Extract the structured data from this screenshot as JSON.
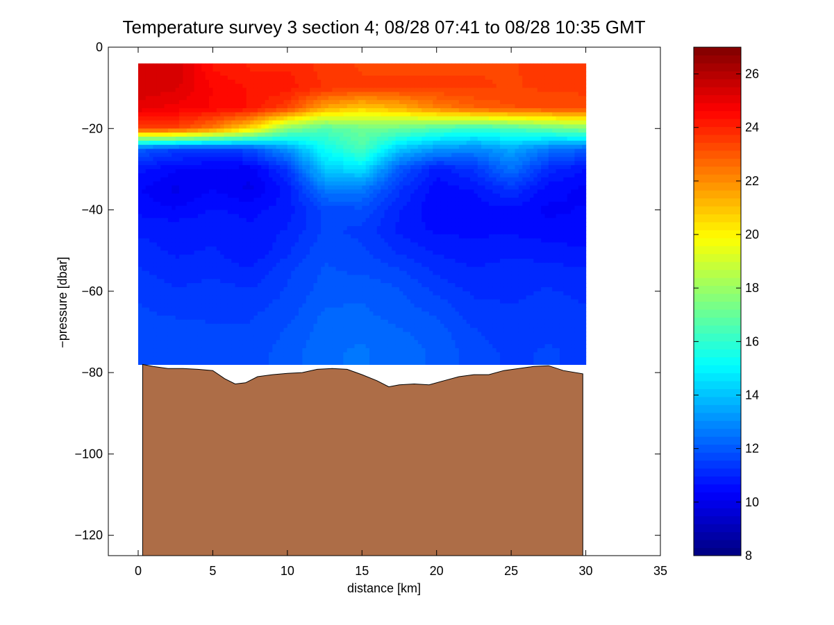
{
  "chart_data": {
    "type": "heatmap",
    "title": "Temperature survey 3 section 4; 08/28 07:41 to 08/28 10:35 GMT",
    "xlabel": "distance [km]",
    "ylabel": "−pressure [dbar]",
    "xlim": [
      -2,
      35
    ],
    "ylim": [
      -125,
      0
    ],
    "xticks": [
      0,
      5,
      10,
      15,
      20,
      25,
      30,
      35
    ],
    "xtick_labels": [
      "0",
      "5",
      "10",
      "15",
      "20",
      "25",
      "30",
      "35"
    ],
    "yticks": [
      0,
      -20,
      -40,
      -60,
      -80,
      -100,
      -120
    ],
    "ytick_labels": [
      "0",
      "−20",
      "−40",
      "−60",
      "−80",
      "−100",
      "−120"
    ],
    "colorbar": {
      "label": "",
      "range": [
        8,
        27
      ],
      "ticks": [
        8,
        10,
        12,
        14,
        16,
        18,
        20,
        22,
        24,
        26
      ],
      "tick_labels": [
        "8",
        "10",
        "12",
        "14",
        "16",
        "18",
        "20",
        "22",
        "24",
        "26"
      ],
      "colormap": "jet"
    },
    "bathymetry": {
      "color": "#ad6d47",
      "distance_km": [
        0.3,
        1,
        2,
        3,
        4,
        5,
        5.8,
        6.5,
        7.2,
        8,
        9,
        10,
        11,
        12,
        13,
        14,
        15,
        16,
        16.8,
        17.5,
        18.5,
        19.5,
        20.5,
        21.5,
        22.5,
        23.5,
        24.5,
        25.5,
        26.5,
        27.5,
        28.5,
        29.8
      ],
      "depth_dbar": [
        -78,
        -78.5,
        -79,
        -79,
        -79.2,
        -79.5,
        -81.5,
        -82.8,
        -82.5,
        -81,
        -80.5,
        -80.2,
        -80,
        -79.2,
        -79,
        -79.2,
        -80.5,
        -82,
        -83.5,
        -83,
        -82.8,
        -83,
        -82,
        -81,
        -80.5,
        -80.5,
        -79.5,
        -79,
        -78.5,
        -78.3,
        -79.5,
        -80.3
      ]
    },
    "section": {
      "station_distance_km": [
        0,
        2.5,
        5,
        7.5,
        10,
        12.5,
        15,
        17.5,
        20,
        22.5,
        25,
        27.5,
        29.8
      ],
      "pressure_dbar": [
        -5,
        -10,
        -15,
        -20,
        -25,
        -30,
        -35,
        -40,
        -45,
        -50,
        -55,
        -60,
        -65,
        -70,
        -75
      ],
      "temperature_C": [
        [
          25.5,
          25.5,
          24.3,
          24,
          24,
          23.6,
          23.4,
          23.4,
          23.4,
          23.4,
          23.4,
          23.6,
          23.5
        ],
        [
          25.4,
          25.3,
          24.6,
          24.3,
          24.2,
          23.7,
          23.5,
          23.5,
          23.5,
          23.5,
          23.4,
          23.5,
          23.5
        ],
        [
          25.1,
          24.8,
          24.6,
          24.3,
          23.4,
          21.5,
          20.8,
          21.3,
          22.2,
          22.8,
          23.1,
          23.2,
          23.3
        ],
        [
          23.5,
          23.4,
          22.3,
          20.5,
          17.6,
          16.6,
          17.2,
          17.1,
          16.5,
          16.1,
          16.4,
          17,
          17.5
        ],
        [
          12.1,
          11.6,
          11.4,
          11.8,
          13.2,
          15.3,
          16.5,
          14.1,
          13.2,
          12.9,
          13.5,
          12.6,
          12.2
        ],
        [
          10.8,
          10.4,
          10.3,
          10.2,
          11.3,
          14.2,
          14.6,
          12,
          10.8,
          11.3,
          12.5,
          11.1,
          10.7
        ],
        [
          10.4,
          10,
          10.4,
          10,
          10.8,
          12.6,
          12.6,
          11.3,
          10.5,
          10.7,
          11.3,
          10.5,
          10.3
        ],
        [
          10.6,
          10.4,
          10.7,
          10.6,
          10.8,
          11.7,
          11.8,
          11,
          10.4,
          10.5,
          10.6,
          10.3,
          10.4
        ],
        [
          10.9,
          10.9,
          10.9,
          10.7,
          11,
          11.6,
          11.5,
          10.9,
          10.6,
          10.6,
          10.6,
          10.5,
          10.5
        ],
        [
          11.1,
          10.9,
          11,
          10.7,
          11.2,
          11.8,
          11.6,
          11.2,
          10.9,
          10.8,
          10.9,
          10.8,
          10.7
        ],
        [
          11.3,
          11.1,
          11.2,
          11,
          11.5,
          11.9,
          11.8,
          11.6,
          11.2,
          11,
          11.1,
          11.1,
          11
        ],
        [
          11.5,
          11.3,
          11.4,
          11.3,
          11.6,
          12,
          12.1,
          11.9,
          11.5,
          11.2,
          11.2,
          11.3,
          11.2
        ],
        [
          11.6,
          11.5,
          11.5,
          11.5,
          11.7,
          12.2,
          12.2,
          12,
          11.8,
          11.4,
          11.3,
          11.4,
          11.3
        ],
        [
          11.7,
          11.7,
          11.6,
          11.6,
          11.9,
          12.3,
          12.4,
          12.2,
          12,
          11.6,
          11.4,
          11.5,
          11.4
        ],
        [
          11.8,
          11.8,
          11.7,
          11.7,
          12,
          12.4,
          12.5,
          12.3,
          12.1,
          11.7,
          11.5,
          11.6,
          11.5
        ]
      ]
    }
  }
}
